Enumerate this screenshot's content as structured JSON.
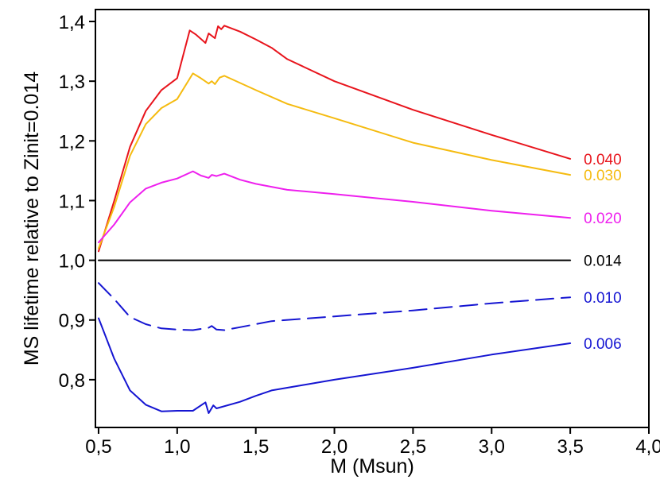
{
  "chart_data": {
    "type": "line",
    "title": "",
    "xlabel": "M (Msun)",
    "ylabel": "MS lifetime relative to Zinit=0.014",
    "xlim": [
      0.48,
      4.0
    ],
    "ylim": [
      0.72,
      1.42
    ],
    "grid": false,
    "legend": "inline labels at right end of lines",
    "x_ticks": [
      0.5,
      1.0,
      1.5,
      2.0,
      2.5,
      3.0,
      3.5,
      4.0
    ],
    "x_tick_labels": [
      "0,5",
      "1,0",
      "1,5",
      "2,0",
      "2,5",
      "3,0",
      "3,5",
      "4,0"
    ],
    "y_ticks": [
      0.8,
      0.9,
      1.0,
      1.1,
      1.2,
      1.3,
      1.4
    ],
    "y_tick_labels": [
      "0,8",
      "0,9",
      "1,0",
      "1,1",
      "1,2",
      "1,3",
      "1,4"
    ],
    "series": [
      {
        "name": "0.040",
        "color": "#e8141c",
        "dash": "solid",
        "points": [
          [
            0.5,
            1.015
          ],
          [
            0.6,
            1.1
          ],
          [
            0.7,
            1.19
          ],
          [
            0.8,
            1.25
          ],
          [
            0.9,
            1.285
          ],
          [
            1.0,
            1.305
          ],
          [
            1.08,
            1.385
          ],
          [
            1.12,
            1.378
          ],
          [
            1.18,
            1.364
          ],
          [
            1.2,
            1.38
          ],
          [
            1.24,
            1.372
          ],
          [
            1.26,
            1.392
          ],
          [
            1.28,
            1.387
          ],
          [
            1.3,
            1.393
          ],
          [
            1.4,
            1.383
          ],
          [
            1.5,
            1.37
          ],
          [
            1.6,
            1.356
          ],
          [
            1.7,
            1.337
          ],
          [
            2.0,
            1.3
          ],
          [
            2.5,
            1.252
          ],
          [
            3.0,
            1.21
          ],
          [
            3.5,
            1.17
          ]
        ]
      },
      {
        "name": "0.030",
        "color": "#f5bb10",
        "dash": "solid",
        "points": [
          [
            0.5,
            1.02
          ],
          [
            0.6,
            1.09
          ],
          [
            0.7,
            1.175
          ],
          [
            0.8,
            1.228
          ],
          [
            0.9,
            1.255
          ],
          [
            1.0,
            1.27
          ],
          [
            1.1,
            1.313
          ],
          [
            1.15,
            1.305
          ],
          [
            1.2,
            1.296
          ],
          [
            1.22,
            1.3
          ],
          [
            1.24,
            1.295
          ],
          [
            1.27,
            1.306
          ],
          [
            1.3,
            1.309
          ],
          [
            1.4,
            1.297
          ],
          [
            1.5,
            1.285
          ],
          [
            1.7,
            1.262
          ],
          [
            2.0,
            1.238
          ],
          [
            2.5,
            1.197
          ],
          [
            3.0,
            1.168
          ],
          [
            3.5,
            1.143
          ]
        ]
      },
      {
        "name": "0.020",
        "color": "#ee1fee",
        "dash": "solid",
        "points": [
          [
            0.5,
            1.03
          ],
          [
            0.6,
            1.06
          ],
          [
            0.7,
            1.097
          ],
          [
            0.8,
            1.12
          ],
          [
            0.9,
            1.13
          ],
          [
            1.0,
            1.137
          ],
          [
            1.1,
            1.149
          ],
          [
            1.15,
            1.142
          ],
          [
            1.2,
            1.138
          ],
          [
            1.22,
            1.143
          ],
          [
            1.25,
            1.141
          ],
          [
            1.3,
            1.145
          ],
          [
            1.4,
            1.135
          ],
          [
            1.5,
            1.128
          ],
          [
            1.7,
            1.118
          ],
          [
            2.0,
            1.111
          ],
          [
            2.5,
            1.098
          ],
          [
            3.0,
            1.083
          ],
          [
            3.5,
            1.071
          ]
        ]
      },
      {
        "name": "0.014",
        "color": "#000000",
        "dash": "solid",
        "points": [
          [
            0.5,
            1.0
          ],
          [
            3.5,
            1.0
          ]
        ]
      },
      {
        "name": "0.010",
        "color": "#1515d2",
        "dash": "dashed",
        "points": [
          [
            0.5,
            0.962
          ],
          [
            0.6,
            0.935
          ],
          [
            0.7,
            0.905
          ],
          [
            0.8,
            0.893
          ],
          [
            0.9,
            0.886
          ],
          [
            1.0,
            0.884
          ],
          [
            1.1,
            0.883
          ],
          [
            1.2,
            0.887
          ],
          [
            1.22,
            0.89
          ],
          [
            1.25,
            0.884
          ],
          [
            1.3,
            0.883
          ],
          [
            1.4,
            0.888
          ],
          [
            1.6,
            0.898
          ],
          [
            2.0,
            0.906
          ],
          [
            2.5,
            0.916
          ],
          [
            3.0,
            0.928
          ],
          [
            3.5,
            0.938
          ]
        ]
      },
      {
        "name": "0.006",
        "color": "#1515d2",
        "dash": "solid",
        "points": [
          [
            0.5,
            0.903
          ],
          [
            0.6,
            0.835
          ],
          [
            0.7,
            0.782
          ],
          [
            0.8,
            0.758
          ],
          [
            0.9,
            0.747
          ],
          [
            1.0,
            0.748
          ],
          [
            1.1,
            0.748
          ],
          [
            1.18,
            0.762
          ],
          [
            1.2,
            0.744
          ],
          [
            1.23,
            0.757
          ],
          [
            1.25,
            0.752
          ],
          [
            1.4,
            0.763
          ],
          [
            1.5,
            0.773
          ],
          [
            1.6,
            0.782
          ],
          [
            1.8,
            0.791
          ],
          [
            2.0,
            0.8
          ],
          [
            2.5,
            0.82
          ],
          [
            3.0,
            0.842
          ],
          [
            3.5,
            0.861
          ]
        ]
      }
    ]
  }
}
